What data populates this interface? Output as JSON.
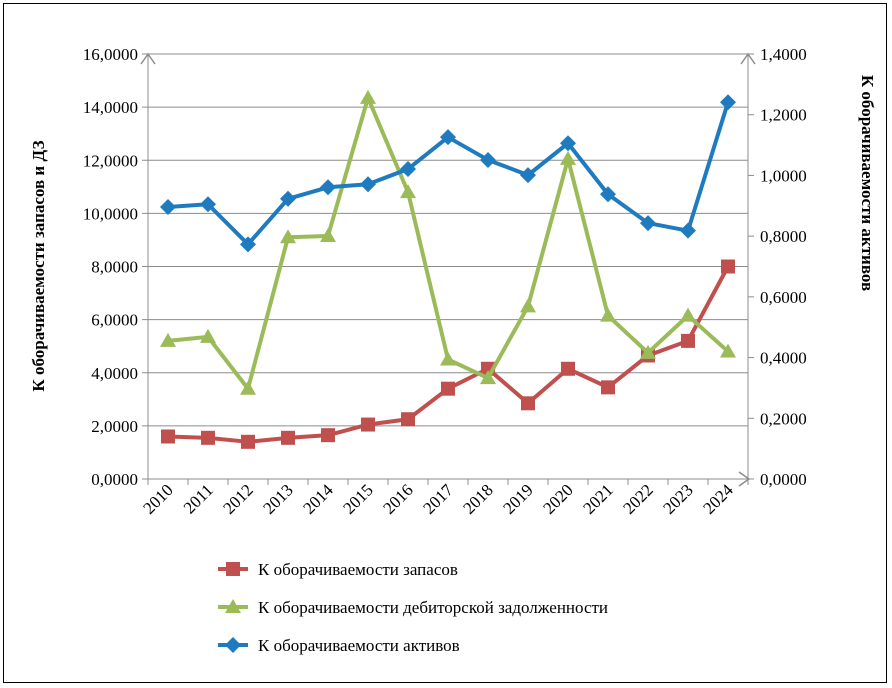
{
  "chart_data": {
    "type": "line",
    "categories": [
      "2010",
      "2011",
      "2012",
      "2013",
      "2014",
      "2015",
      "2016",
      "2017",
      "2018",
      "2019",
      "2020",
      "2021",
      "2022",
      "2023",
      "2024"
    ],
    "y_left": {
      "label": "К оборачиваемости запасов и ДЗ",
      "ylim": [
        0,
        16
      ],
      "ticks": [
        "0,0000",
        "2,0000",
        "4,0000",
        "6,0000",
        "8,0000",
        "10,0000",
        "12,0000",
        "14,0000",
        "16,0000"
      ]
    },
    "y_right": {
      "label": "К оборачиваемости активов",
      "ylim": [
        0,
        1.4
      ],
      "ticks": [
        "0,0000",
        "0,2000",
        "0,4000",
        "0,6000",
        "0,8000",
        "1,0000",
        "1,2000",
        "1,4000"
      ]
    },
    "grid": true,
    "legend_position": "bottom",
    "series": [
      {
        "name": "К оборачиваемости запасов",
        "axis": "left",
        "color": "#c0504d",
        "marker": "square",
        "values": [
          1.6,
          1.55,
          1.4,
          1.55,
          1.65,
          2.05,
          2.25,
          3.4,
          4.15,
          2.85,
          4.15,
          3.45,
          4.65,
          5.2,
          8.0
        ]
      },
      {
        "name": "К оборачиваемости дебиторской задолженности",
        "axis": "left",
        "color": "#9bbb59",
        "marker": "triangle",
        "values": [
          5.2,
          5.35,
          3.4,
          9.1,
          9.15,
          14.35,
          10.8,
          4.5,
          3.8,
          6.5,
          12.05,
          6.15,
          4.75,
          6.15,
          4.8
        ]
      },
      {
        "name": "К оборачиваемости активов",
        "axis": "right",
        "color": "#1f7bbf",
        "marker": "diamond",
        "values": [
          0.896,
          0.905,
          0.773,
          0.923,
          0.961,
          0.971,
          1.021,
          1.126,
          1.051,
          1.001,
          1.106,
          0.938,
          0.843,
          0.818,
          1.241
        ]
      }
    ]
  }
}
